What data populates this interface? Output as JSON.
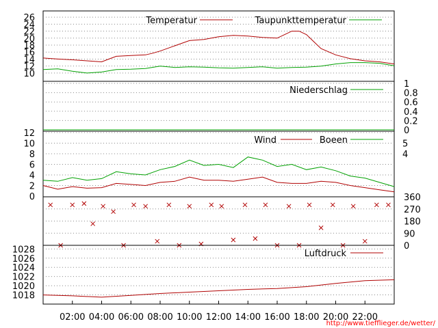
{
  "source_url": "http://www.tiefflieger.de/wetter/",
  "x_axis": {
    "ticks": [
      "02:00",
      "04:00",
      "06:00",
      "08:00",
      "10:00",
      "12:00",
      "14:00",
      "16:00",
      "18:00",
      "20:00",
      "22:00"
    ]
  },
  "colors": {
    "red": "#b00000",
    "green": "#00a000",
    "grid": "#888888"
  },
  "chart_data": [
    {
      "type": "line",
      "series": [
        {
          "name": "Temperatur",
          "color": "#b00000",
          "x": [
            0,
            1,
            2,
            3,
            4,
            4.5,
            5,
            6,
            7,
            7.5,
            8,
            9,
            10,
            11,
            12,
            13,
            14,
            15,
            16,
            16.5,
            17,
            17.5,
            18,
            18.5,
            19,
            20,
            21,
            22,
            23,
            24
          ],
          "y": [
            14.3,
            14.0,
            13.8,
            13.5,
            13.2,
            14.0,
            14.8,
            15.0,
            15.2,
            15.7,
            16.3,
            17.8,
            19.3,
            19.6,
            20.4,
            20.8,
            20.6,
            20.2,
            20.0,
            21.0,
            22.0,
            22.0,
            21.0,
            19.0,
            17.0,
            15.2,
            14.1,
            13.5,
            13.2,
            12.6
          ]
        },
        {
          "name": "Taupunkttemperatur",
          "color": "#00a000",
          "x": [
            0,
            1,
            2,
            3,
            4,
            5,
            6,
            7,
            8,
            9,
            10,
            11,
            12,
            13,
            14,
            15,
            16,
            17,
            18,
            19,
            20,
            21,
            22,
            23,
            24
          ],
          "y": [
            11.0,
            11.2,
            10.5,
            10.0,
            10.3,
            11.0,
            11.1,
            11.3,
            12.0,
            11.6,
            11.8,
            11.7,
            11.5,
            11.4,
            11.6,
            11.8,
            11.4,
            11.6,
            11.7,
            12.0,
            12.6,
            13.0,
            13.0,
            12.8,
            12.1
          ]
        }
      ],
      "yticks": [
        10,
        12,
        14,
        16,
        18,
        20,
        22,
        24,
        26
      ],
      "ylim": [
        9,
        27
      ]
    },
    {
      "type": "line",
      "series": [
        {
          "name": "Niederschlag",
          "color": "#00a000",
          "x": [
            0,
            24
          ],
          "y": [
            0,
            0
          ]
        }
      ],
      "yticks": [
        0,
        0.2,
        0.4,
        0.6,
        0.8,
        1
      ],
      "ylim": [
        0,
        1
      ]
    },
    {
      "type": "line",
      "series": [
        {
          "name": "Wind",
          "color": "#b00000",
          "x": [
            0,
            1,
            2,
            3,
            4,
            5,
            6,
            7,
            8,
            9,
            10,
            11,
            12,
            13,
            14,
            15,
            16,
            17,
            18,
            19,
            20,
            21,
            22,
            23,
            24
          ],
          "y": [
            2.0,
            1.3,
            1.8,
            1.5,
            1.6,
            2.4,
            2.2,
            2.0,
            2.6,
            2.8,
            3.6,
            3.0,
            3.0,
            2.8,
            3.2,
            3.6,
            2.6,
            2.4,
            2.4,
            2.8,
            2.6,
            2.0,
            1.6,
            1.2,
            0.8
          ]
        },
        {
          "name": "Boeen",
          "color": "#00a000",
          "x": [
            0,
            1,
            2,
            3,
            4,
            5,
            6,
            7,
            8,
            9,
            10,
            11,
            12,
            13,
            14,
            15,
            16,
            17,
            18,
            19,
            20,
            21,
            22,
            23,
            24
          ],
          "y": [
            3.0,
            2.8,
            3.5,
            3.0,
            3.3,
            4.6,
            4.2,
            4.0,
            5.0,
            5.6,
            6.8,
            5.8,
            6.0,
            5.4,
            7.4,
            6.8,
            5.6,
            6.0,
            5.0,
            5.5,
            4.8,
            3.8,
            3.4,
            2.6,
            1.8
          ]
        }
      ],
      "yticks": [
        0,
        2,
        4,
        6,
        8,
        10,
        12
      ],
      "right_ticks": [
        4,
        5
      ],
      "ylim": [
        0,
        12
      ]
    },
    {
      "type": "scatter",
      "series": [
        {
          "name": "",
          "color": "#b00000",
          "x": [
            0.5,
            1.2,
            2.0,
            2.8,
            3.4,
            4.1,
            4.8,
            5.5,
            6.2,
            7.0,
            7.8,
            8.6,
            9.3,
            10.0,
            10.8,
            11.5,
            12.2,
            13.0,
            13.8,
            14.5,
            15.2,
            16.0,
            16.8,
            17.5,
            18.2,
            19.0,
            19.8,
            20.5,
            21.2,
            22.0,
            22.8,
            23.6
          ],
          "y": [
            300,
            0,
            300,
            310,
            160,
            290,
            250,
            0,
            300,
            290,
            30,
            300,
            0,
            290,
            10,
            300,
            290,
            40,
            300,
            50,
            300,
            0,
            290,
            0,
            300,
            130,
            300,
            0,
            290,
            30,
            300,
            300
          ]
        }
      ],
      "yticks": [
        0,
        90,
        180,
        270,
        360
      ],
      "ylim": [
        0,
        360
      ]
    },
    {
      "type": "line",
      "series": [
        {
          "name": "Luftdruck",
          "color": "#b00000",
          "x": [
            0,
            2,
            4,
            6,
            8,
            10,
            12,
            14,
            16,
            18,
            20,
            22,
            24
          ],
          "y": [
            1018.0,
            1017.8,
            1017.5,
            1017.9,
            1018.3,
            1018.6,
            1018.9,
            1019.2,
            1019.4,
            1019.8,
            1020.5,
            1021.1,
            1021.3
          ]
        }
      ],
      "yticks": [
        1018,
        1020,
        1022,
        1024,
        1026,
        1028
      ],
      "ylim": [
        1016,
        1028.5
      ]
    }
  ]
}
